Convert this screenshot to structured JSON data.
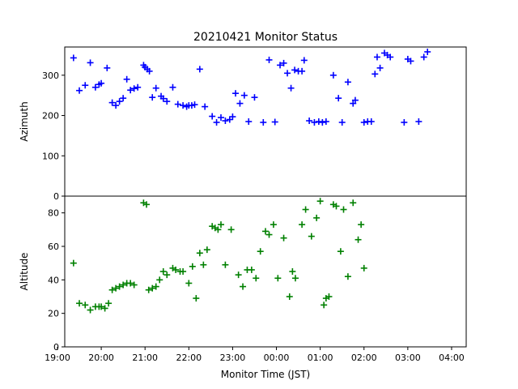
{
  "chart_data": {
    "type": "scatter",
    "title": "20210421 Monitor Status",
    "xlabel": "Monitor Time (JST)",
    "x_range": [
      "19:10",
      "04:20"
    ],
    "x_ticks": [
      "19:00",
      "20:00",
      "21:00",
      "22:00",
      "23:00",
      "00:00",
      "01:00",
      "02:00",
      "03:00",
      "04:00"
    ],
    "grid": false,
    "marker": "plus",
    "panels": [
      {
        "name": "azimuth",
        "ylabel": "Azimuth",
        "ylim": [
          0,
          370
        ],
        "yticks": [
          0,
          100,
          200,
          300
        ],
        "color": "#0000ff",
        "points": [
          [
            "19:22",
            343
          ],
          [
            "19:30",
            262
          ],
          [
            "19:38",
            275
          ],
          [
            "19:45",
            331
          ],
          [
            "19:52",
            270
          ],
          [
            "19:57",
            277
          ],
          [
            "20:00",
            280
          ],
          [
            "20:08",
            318
          ],
          [
            "20:15",
            232
          ],
          [
            "20:20",
            225
          ],
          [
            "20:25",
            235
          ],
          [
            "20:30",
            243
          ],
          [
            "20:35",
            290
          ],
          [
            "20:40",
            263
          ],
          [
            "20:45",
            267
          ],
          [
            "20:50",
            270
          ],
          [
            "20:58",
            325
          ],
          [
            "21:00",
            320
          ],
          [
            "21:03",
            315
          ],
          [
            "21:06",
            310
          ],
          [
            "21:10",
            245
          ],
          [
            "21:15",
            268
          ],
          [
            "21:22",
            248
          ],
          [
            "21:25",
            242
          ],
          [
            "21:30",
            235
          ],
          [
            "21:38",
            270
          ],
          [
            "21:45",
            228
          ],
          [
            "21:52",
            225
          ],
          [
            "21:57",
            222
          ],
          [
            "22:00",
            225
          ],
          [
            "22:04",
            225
          ],
          [
            "22:08",
            227
          ],
          [
            "22:15",
            315
          ],
          [
            "22:22",
            222
          ],
          [
            "22:32",
            198
          ],
          [
            "22:38",
            183
          ],
          [
            "22:44",
            195
          ],
          [
            "22:50",
            187
          ],
          [
            "22:56",
            190
          ],
          [
            "23:00",
            197
          ],
          [
            "23:04",
            255
          ],
          [
            "23:10",
            230
          ],
          [
            "23:16",
            250
          ],
          [
            "23:22",
            185
          ],
          [
            "23:30",
            245
          ],
          [
            "23:42",
            183
          ],
          [
            "23:50",
            338
          ],
          [
            "23:58",
            184
          ],
          [
            "00:05",
            325
          ],
          [
            "00:10",
            330
          ],
          [
            "00:15",
            305
          ],
          [
            "00:20",
            268
          ],
          [
            "00:25",
            313
          ],
          [
            "00:30",
            310
          ],
          [
            "00:35",
            310
          ],
          [
            "00:38",
            337
          ],
          [
            "00:45",
            187
          ],
          [
            "00:52",
            183
          ],
          [
            "00:58",
            185
          ],
          [
            "01:03",
            183
          ],
          [
            "01:08",
            185
          ],
          [
            "01:18",
            300
          ],
          [
            "01:25",
            243
          ],
          [
            "01:30",
            183
          ],
          [
            "01:38",
            283
          ],
          [
            "01:45",
            230
          ],
          [
            "01:48",
            238
          ],
          [
            "02:00",
            183
          ],
          [
            "02:05",
            185
          ],
          [
            "02:10",
            185
          ],
          [
            "02:15",
            303
          ],
          [
            "02:18",
            345
          ],
          [
            "02:22",
            318
          ],
          [
            "02:28",
            355
          ],
          [
            "02:32",
            350
          ],
          [
            "02:36",
            345
          ],
          [
            "02:55",
            183
          ],
          [
            "03:00",
            340
          ],
          [
            "03:04",
            335
          ],
          [
            "03:15",
            185
          ],
          [
            "03:22",
            345
          ],
          [
            "03:27",
            358
          ]
        ]
      },
      {
        "name": "altitude",
        "ylabel": "Altitude",
        "ylim": [
          0,
          90
        ],
        "yticks": [
          0,
          20,
          40,
          60,
          80
        ],
        "color": "#008000",
        "points": [
          [
            "19:22",
            50
          ],
          [
            "19:30",
            26
          ],
          [
            "19:38",
            25
          ],
          [
            "19:45",
            22
          ],
          [
            "19:52",
            24
          ],
          [
            "19:57",
            24
          ],
          [
            "20:00",
            24
          ],
          [
            "20:05",
            23
          ],
          [
            "20:10",
            26
          ],
          [
            "20:15",
            34
          ],
          [
            "20:20",
            35
          ],
          [
            "20:25",
            36
          ],
          [
            "20:30",
            37
          ],
          [
            "20:35",
            38
          ],
          [
            "20:40",
            38
          ],
          [
            "20:45",
            37
          ],
          [
            "20:58",
            86
          ],
          [
            "21:02",
            85
          ],
          [
            "21:05",
            34
          ],
          [
            "21:10",
            35
          ],
          [
            "21:15",
            36
          ],
          [
            "21:20",
            40
          ],
          [
            "21:25",
            45
          ],
          [
            "21:30",
            43
          ],
          [
            "21:38",
            47
          ],
          [
            "21:42",
            46
          ],
          [
            "21:48",
            45
          ],
          [
            "21:52",
            45
          ],
          [
            "22:00",
            38
          ],
          [
            "22:05",
            48
          ],
          [
            "22:10",
            29
          ],
          [
            "22:15",
            56
          ],
          [
            "22:20",
            49
          ],
          [
            "22:25",
            58
          ],
          [
            "22:32",
            72
          ],
          [
            "22:36",
            71
          ],
          [
            "22:40",
            70
          ],
          [
            "22:44",
            73
          ],
          [
            "22:50",
            49
          ],
          [
            "22:58",
            70
          ],
          [
            "23:08",
            43
          ],
          [
            "23:14",
            36
          ],
          [
            "23:20",
            46
          ],
          [
            "23:26",
            46
          ],
          [
            "23:32",
            41
          ],
          [
            "23:38",
            57
          ],
          [
            "23:45",
            69
          ],
          [
            "23:50",
            67
          ],
          [
            "23:56",
            73
          ],
          [
            "00:02",
            41
          ],
          [
            "00:10",
            65
          ],
          [
            "00:18",
            30
          ],
          [
            "00:22",
            45
          ],
          [
            "00:26",
            41
          ],
          [
            "00:35",
            73
          ],
          [
            "00:40",
            82
          ],
          [
            "00:48",
            66
          ],
          [
            "00:55",
            77
          ],
          [
            "01:00",
            87
          ],
          [
            "01:05",
            25
          ],
          [
            "01:08",
            29
          ],
          [
            "01:12",
            30
          ],
          [
            "01:18",
            85
          ],
          [
            "01:22",
            84
          ],
          [
            "01:28",
            57
          ],
          [
            "01:32",
            82
          ],
          [
            "01:38",
            42
          ],
          [
            "01:45",
            86
          ],
          [
            "01:52",
            64
          ],
          [
            "01:56",
            73
          ],
          [
            "02:00",
            47
          ]
        ]
      }
    ]
  }
}
